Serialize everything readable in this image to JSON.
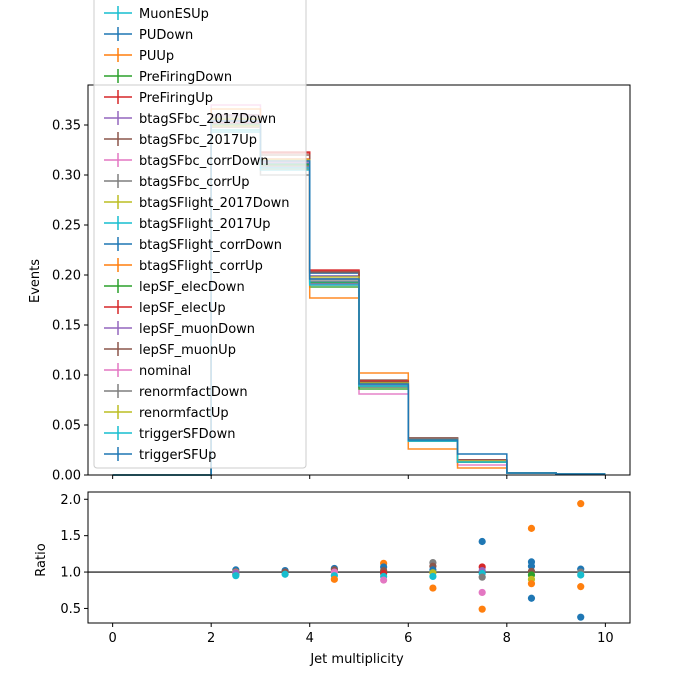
{
  "chart_data": [
    {
      "type": "step",
      "ylabel": "Events",
      "xlim": [
        -0.5,
        10.5
      ],
      "ylim": [
        0.0,
        0.39
      ],
      "yticks": [
        0.0,
        0.05,
        0.1,
        0.15,
        0.2,
        0.25,
        0.3,
        0.35
      ],
      "bin_edges": [
        0,
        2,
        3,
        4,
        5,
        6,
        7,
        8,
        9,
        10
      ],
      "legend_position": "upper-left",
      "series": [
        {
          "name": "MuonESUp",
          "color": "#17becf",
          "values": [
            0,
            0.355,
            0.311,
            0.196,
            0.092,
            0.035,
            0.014,
            0.002,
            0.001
          ]
        },
        {
          "name": "PUDown",
          "color": "#1f77b4",
          "values": [
            0,
            0.35,
            0.312,
            0.199,
            0.093,
            0.036,
            0.015,
            0.002,
            0.001
          ]
        },
        {
          "name": "PUUp",
          "color": "#ff7f0e",
          "values": [
            0,
            0.36,
            0.306,
            0.19,
            0.091,
            0.034,
            0.013,
            0.002,
            0.001
          ]
        },
        {
          "name": "PreFiringDown",
          "color": "#2ca02c",
          "values": [
            0,
            0.356,
            0.31,
            0.188,
            0.088,
            0.035,
            0.014,
            0.002,
            0.001
          ]
        },
        {
          "name": "PreFiringUp",
          "color": "#d62728",
          "values": [
            0,
            0.352,
            0.323,
            0.204,
            0.094,
            0.036,
            0.015,
            0.002,
            0.001
          ]
        },
        {
          "name": "btagSFbc_2017Down",
          "color": "#9467bd",
          "values": [
            0,
            0.36,
            0.314,
            0.199,
            0.09,
            0.035,
            0.014,
            0.002,
            0.001
          ]
        },
        {
          "name": "btagSFbc_2017Up",
          "color": "#8c564b",
          "values": [
            0,
            0.348,
            0.314,
            0.202,
            0.095,
            0.037,
            0.014,
            0.002,
            0.001
          ]
        },
        {
          "name": "btagSFbc_corrDown",
          "color": "#e377c2",
          "values": [
            0,
            0.37,
            0.316,
            0.193,
            0.081,
            0.035,
            0.01,
            0.002,
            0.001
          ]
        },
        {
          "name": "btagSFbc_corrUp",
          "color": "#7f7f7f",
          "values": [
            0,
            0.355,
            0.3,
            0.196,
            0.088,
            0.037,
            0.013,
            0.002,
            0.001
          ]
        },
        {
          "name": "btagSFlight_2017Down",
          "color": "#bcbd22",
          "values": [
            0,
            0.356,
            0.312,
            0.196,
            0.089,
            0.035,
            0.014,
            0.002,
            0.001
          ]
        },
        {
          "name": "btagSFlight_2017Up",
          "color": "#17becf",
          "values": [
            0,
            0.343,
            0.305,
            0.193,
            0.09,
            0.034,
            0.014,
            0.002,
            0.001
          ]
        },
        {
          "name": "btagSFlight_corrDown",
          "color": "#1f77b4",
          "values": [
            0,
            0.352,
            0.312,
            0.202,
            0.092,
            0.036,
            0.015,
            0.002,
            0.001
          ]
        },
        {
          "name": "btagSFlight_corrUp",
          "color": "#ff7f0e",
          "values": [
            0,
            0.366,
            0.316,
            0.177,
            0.102,
            0.026,
            0.007,
            0.002,
            0.001
          ]
        },
        {
          "name": "lepSF_elecDown",
          "color": "#2ca02c",
          "values": [
            0,
            0.35,
            0.31,
            0.192,
            0.086,
            0.034,
            0.013,
            0.002,
            0.001
          ]
        },
        {
          "name": "lepSF_elecUp",
          "color": "#d62728",
          "values": [
            0,
            0.353,
            0.322,
            0.205,
            0.094,
            0.036,
            0.015,
            0.002,
            0.001
          ]
        },
        {
          "name": "lepSF_muonDown",
          "color": "#9467bd",
          "values": [
            0,
            0.354,
            0.308,
            0.191,
            0.09,
            0.034,
            0.014,
            0.002,
            0.001
          ]
        },
        {
          "name": "lepSF_muonUp",
          "color": "#8c564b",
          "values": [
            0,
            0.352,
            0.32,
            0.203,
            0.093,
            0.037,
            0.015,
            0.002,
            0.001
          ]
        },
        {
          "name": "nominal",
          "color": "#e377c2",
          "values": [
            0,
            0.353,
            0.313,
            0.196,
            0.091,
            0.035,
            0.014,
            0.002,
            0.001
          ]
        },
        {
          "name": "renormfactDown",
          "color": "#7f7f7f",
          "values": [
            0,
            0.358,
            0.309,
            0.194,
            0.089,
            0.036,
            0.013,
            0.002,
            0.001
          ]
        },
        {
          "name": "renormfactUp",
          "color": "#bcbd22",
          "values": [
            0,
            0.349,
            0.315,
            0.198,
            0.092,
            0.035,
            0.014,
            0.002,
            0.001
          ]
        },
        {
          "name": "triggerSFDown",
          "color": "#17becf",
          "values": [
            0,
            0.345,
            0.307,
            0.19,
            0.089,
            0.034,
            0.013,
            0.002,
            0.001
          ]
        },
        {
          "name": "triggerSFUp",
          "color": "#1f77b4",
          "values": [
            0,
            0.354,
            0.314,
            0.196,
            0.091,
            0.035,
            0.021,
            0.002,
            0.001
          ]
        }
      ]
    },
    {
      "type": "scatter",
      "xlabel": "Jet multiplicity",
      "ylabel": "Ratio",
      "xlim": [
        -0.5,
        10.5
      ],
      "ylim": [
        0.3,
        2.1
      ],
      "xticks": [
        0,
        2,
        4,
        6,
        8,
        10
      ],
      "yticks": [
        0.5,
        1.0,
        1.5,
        2.0
      ],
      "reference_line": 1.0,
      "points": [
        {
          "x": 2.5,
          "y": 1.03,
          "color": "#1f77b4"
        },
        {
          "x": 2.5,
          "y": 1.0,
          "color": "#ff7f0e"
        },
        {
          "x": 2.5,
          "y": 0.97,
          "color": "#2ca02c"
        },
        {
          "x": 2.5,
          "y": 0.99,
          "color": "#9467bd"
        },
        {
          "x": 2.5,
          "y": 0.95,
          "color": "#17becf"
        },
        {
          "x": 3.5,
          "y": 1.02,
          "color": "#1f77b4"
        },
        {
          "x": 3.5,
          "y": 1.0,
          "color": "#8c564b"
        },
        {
          "x": 3.5,
          "y": 0.97,
          "color": "#17becf"
        },
        {
          "x": 4.5,
          "y": 1.05,
          "color": "#1f77b4"
        },
        {
          "x": 4.5,
          "y": 1.03,
          "color": "#8c564b"
        },
        {
          "x": 4.5,
          "y": 1.0,
          "color": "#e377c2"
        },
        {
          "x": 4.5,
          "y": 0.95,
          "color": "#17becf"
        },
        {
          "x": 4.5,
          "y": 0.9,
          "color": "#ff7f0e"
        },
        {
          "x": 5.5,
          "y": 1.12,
          "color": "#ff7f0e"
        },
        {
          "x": 5.5,
          "y": 1.07,
          "color": "#1f77b4"
        },
        {
          "x": 5.5,
          "y": 1.02,
          "color": "#8c564b"
        },
        {
          "x": 5.5,
          "y": 0.98,
          "color": "#d62728"
        },
        {
          "x": 5.5,
          "y": 0.94,
          "color": "#17becf"
        },
        {
          "x": 5.5,
          "y": 0.89,
          "color": "#e377c2"
        },
        {
          "x": 6.5,
          "y": 1.13,
          "color": "#7f7f7f"
        },
        {
          "x": 6.5,
          "y": 1.08,
          "color": "#8c564b"
        },
        {
          "x": 6.5,
          "y": 1.03,
          "color": "#1f77b4"
        },
        {
          "x": 6.5,
          "y": 0.99,
          "color": "#bcbd22"
        },
        {
          "x": 6.5,
          "y": 0.94,
          "color": "#17becf"
        },
        {
          "x": 6.5,
          "y": 0.78,
          "color": "#ff7f0e"
        },
        {
          "x": 7.5,
          "y": 1.42,
          "color": "#1f77b4"
        },
        {
          "x": 7.5,
          "y": 1.07,
          "color": "#d62728"
        },
        {
          "x": 7.5,
          "y": 1.02,
          "color": "#9467bd"
        },
        {
          "x": 7.5,
          "y": 0.98,
          "color": "#17becf"
        },
        {
          "x": 7.5,
          "y": 0.93,
          "color": "#7f7f7f"
        },
        {
          "x": 7.5,
          "y": 0.72,
          "color": "#e377c2"
        },
        {
          "x": 7.5,
          "y": 0.49,
          "color": "#ff7f0e"
        },
        {
          "x": 8.5,
          "y": 1.6,
          "color": "#ff7f0e"
        },
        {
          "x": 8.5,
          "y": 1.14,
          "color": "#1f77b4"
        },
        {
          "x": 8.5,
          "y": 1.08,
          "color": "#1f77b4"
        },
        {
          "x": 8.5,
          "y": 1.01,
          "color": "#8c564b"
        },
        {
          "x": 8.5,
          "y": 0.96,
          "color": "#2ca02c"
        },
        {
          "x": 8.5,
          "y": 0.9,
          "color": "#bcbd22"
        },
        {
          "x": 8.5,
          "y": 0.84,
          "color": "#ff7f0e"
        },
        {
          "x": 8.5,
          "y": 0.64,
          "color": "#1f77b4"
        },
        {
          "x": 9.5,
          "y": 1.94,
          "color": "#ff7f0e"
        },
        {
          "x": 9.5,
          "y": 1.04,
          "color": "#1f77b4"
        },
        {
          "x": 9.5,
          "y": 1.0,
          "color": "#7f7f7f"
        },
        {
          "x": 9.5,
          "y": 0.96,
          "color": "#17becf"
        },
        {
          "x": 9.5,
          "y": 0.8,
          "color": "#ff7f0e"
        },
        {
          "x": 9.5,
          "y": 0.38,
          "color": "#1f77b4"
        }
      ]
    }
  ]
}
